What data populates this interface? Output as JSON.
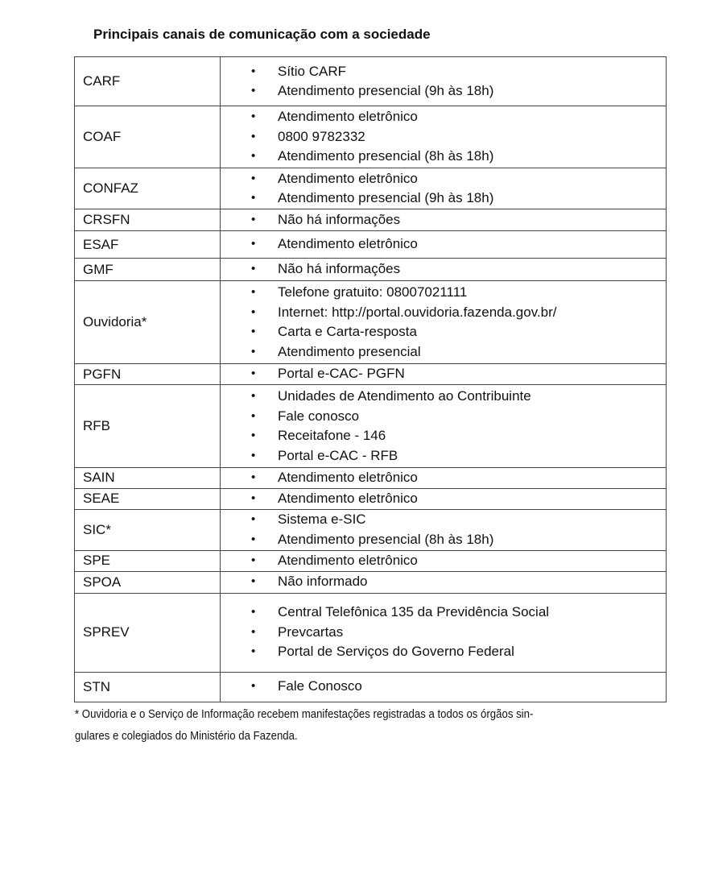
{
  "title": "Principais canais de comunicação com a sociedade",
  "rows": [
    {
      "org": "CARF",
      "channels": [
        "Sítio CARF",
        "Atendimento presencial (9h às 18h)"
      ]
    },
    {
      "org": "COAF",
      "channels": [
        "Atendimento eletrônico",
        "0800 9782332",
        "Atendimento presencial (8h às 18h)"
      ]
    },
    {
      "org": "CONFAZ",
      "channels": [
        "Atendimento eletrônico",
        "Atendimento presencial (9h às 18h)"
      ]
    },
    {
      "org": "CRSFN",
      "channels": [
        "Não há informações"
      ]
    },
    {
      "org": "ESAF",
      "channels": [
        "Atendimento eletrônico"
      ]
    },
    {
      "org": "GMF",
      "channels": [
        "Não há informações"
      ]
    },
    {
      "org": "Ouvidoria*",
      "channels": [
        "Telefone gratuito: 08007021111",
        "Internet: http://portal.ouvidoria.fazenda.gov.br/",
        "Carta e Carta-resposta",
        "Atendimento presencial"
      ]
    },
    {
      "org": "PGFN",
      "channels": [
        "Portal e-CAC- PGFN"
      ]
    },
    {
      "org": "RFB",
      "channels": [
        "Unidades de Atendimento ao Contribuinte",
        "Fale conosco",
        "Receitafone - 146",
        "Portal e-CAC - RFB"
      ]
    },
    {
      "org": "SAIN",
      "channels": [
        "Atendimento eletrônico"
      ]
    },
    {
      "org": "SEAE",
      "channels": [
        "Atendimento eletrônico"
      ]
    },
    {
      "org": "SIC*",
      "channels": [
        "Sistema e-SIC",
        "Atendimento presencial (8h às 18h)"
      ]
    },
    {
      "org": "SPE",
      "channels": [
        "Atendimento eletrônico"
      ]
    },
    {
      "org": "SPOA",
      "channels": [
        "Não informado"
      ]
    },
    {
      "org": "SPREV",
      "channels": [
        "Central Telefônica 135 da Previdência Social",
        "Prevcartas",
        "Portal de Serviços do Governo Federal"
      ]
    },
    {
      "org": "STN",
      "channels": [
        "Fale Conosco"
      ]
    }
  ],
  "footnote_line1": "* Ouvidoria e o Serviço de Informação recebem manifestações registradas a todos os órgãos sin-",
  "footnote_line2": "gulares e colegiados do Ministério da Fazenda."
}
